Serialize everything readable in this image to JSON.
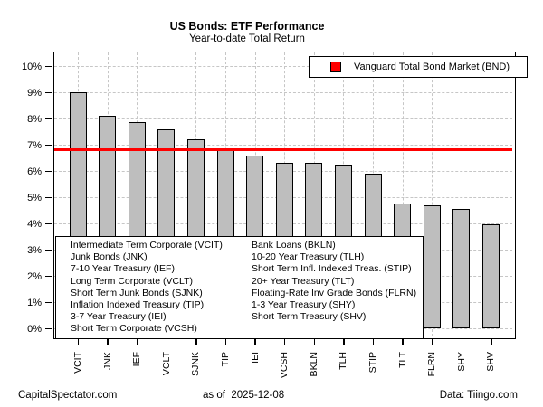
{
  "title": "US Bonds: ETF Performance",
  "subtitle": "Year-to-date Total Return",
  "legend": {
    "label": "Vanguard Total Bond Market (BND)",
    "swatch_color": "#ff0000"
  },
  "annotation_box": {
    "left_column": [
      "Intermediate Term Corporate (VCIT)",
      "Junk Bonds (JNK)",
      "7-10 Year Treasury (IEF)",
      "Long Term Corporate (VCLT)",
      "Short Term Junk Bonds (SJNK)",
      "Inflation Indexed Treasury (TIP)",
      "3-7 Year Treasury (IEI)",
      "Short Term Corporate (VCSH)"
    ],
    "right_column": [
      "Bank Loans (BKLN)",
      "10-20 Year Treasury (TLH)",
      "Short Term Infl. Indexed Treas. (STIP)",
      "20+ Year Treasury (TLT)",
      "Floating-Rate Inv Grade Bonds (FLRN)",
      "1-3 Year Treasury (SHY)",
      "Short Term Treasury (SHV)"
    ]
  },
  "footer": {
    "left": "CapitalSpectator.com",
    "center_label": "as of",
    "center_date": "2025-12-08",
    "right": "Data: Tiingo.com"
  },
  "chart_data": {
    "type": "bar",
    "title": "US Bonds: ETF Performance",
    "subtitle": "Year-to-date Total Return",
    "categories": [
      "VCIT",
      "JNK",
      "IEF",
      "VCLT",
      "SJNK",
      "TIP",
      "IEI",
      "VCSH",
      "BKLN",
      "TLH",
      "STIP",
      "TLT",
      "FLRN",
      "SHY",
      "SHV"
    ],
    "values": [
      9.0,
      8.1,
      7.85,
      7.6,
      7.2,
      6.8,
      6.6,
      6.3,
      6.3,
      6.25,
      5.9,
      4.75,
      4.7,
      4.55,
      3.95
    ],
    "unit": "%",
    "ylabel": "",
    "xlabel": "",
    "ylim": [
      0,
      10
    ],
    "ytick_step": 1,
    "grid": true,
    "legend_position": "top-right",
    "bar_color": "#bebebe",
    "bar_border_color": "#000000",
    "grid_color": "#c6c6c6",
    "reference_line": {
      "label": "Vanguard Total Bond Market (BND)",
      "value": 6.8,
      "color": "#ff0000",
      "thickness_px": 3
    }
  }
}
